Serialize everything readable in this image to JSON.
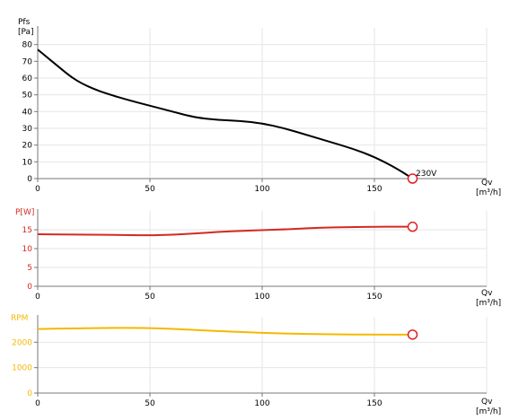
{
  "chart_data": [
    {
      "type": "line",
      "ylabel": "Pfs",
      "yunit": "[Pa]",
      "xlabel": "Qv",
      "xunit": "[m³/h]",
      "xlim": [
        0,
        200
      ],
      "ylim": [
        0,
        90
      ],
      "xticks": [
        0,
        50,
        100,
        150
      ],
      "yticks": [
        0,
        10,
        20,
        30,
        40,
        50,
        60,
        70,
        80
      ],
      "grid": true,
      "color": "#000000",
      "label_color": "#000000",
      "series": [
        {
          "name": "230V",
          "x": [
            0,
            5,
            10,
            15,
            20,
            25,
            30,
            40,
            50,
            60,
            70,
            80,
            90,
            100,
            110,
            120,
            130,
            140,
            150,
            160,
            167
          ],
          "y": [
            77,
            71.5,
            66,
            60.5,
            56.5,
            53.5,
            51,
            47,
            43.5,
            40,
            36.5,
            35,
            34.5,
            33,
            30,
            26,
            22,
            18,
            13,
            6,
            0
          ]
        }
      ],
      "end_marker": {
        "x": 167,
        "y": 0
      }
    },
    {
      "type": "line",
      "ylabel": "P[W]",
      "xlabel": "Qv",
      "xunit": "[m³/h]",
      "xlim": [
        0,
        200
      ],
      "ylim": [
        0,
        20
      ],
      "xticks": [
        0,
        50,
        100,
        150
      ],
      "yticks": [
        0,
        5,
        10,
        15
      ],
      "grid": true,
      "color": "#d42a1f",
      "label_color": "#d42a1f",
      "series": [
        {
          "x": [
            0,
            20,
            40,
            50,
            60,
            70,
            80,
            90,
            100,
            110,
            120,
            130,
            140,
            150,
            160,
            167
          ],
          "y": [
            13.8,
            13.7,
            13.6,
            13.5,
            13.7,
            14.0,
            14.4,
            14.7,
            14.9,
            15.1,
            15.4,
            15.6,
            15.7,
            15.8,
            15.8,
            15.8
          ]
        }
      ],
      "end_marker": {
        "x": 167,
        "y": 15.8
      }
    },
    {
      "type": "line",
      "ylabel": "RPM",
      "xlabel": "Qv",
      "xunit": "[m³/h]",
      "xlim": [
        0,
        200
      ],
      "ylim": [
        0,
        3000
      ],
      "xticks": [
        0,
        50,
        100,
        150
      ],
      "yticks": [
        0,
        1000,
        2000
      ],
      "grid": true,
      "color": "#f5b800",
      "label_color": "#f5b800",
      "series": [
        {
          "x": [
            0,
            20,
            40,
            55,
            70,
            90,
            110,
            130,
            150,
            167
          ],
          "y": [
            2520,
            2550,
            2570,
            2550,
            2480,
            2400,
            2340,
            2310,
            2300,
            2300
          ]
        }
      ],
      "end_marker": {
        "x": 167,
        "y": 2300
      }
    }
  ]
}
